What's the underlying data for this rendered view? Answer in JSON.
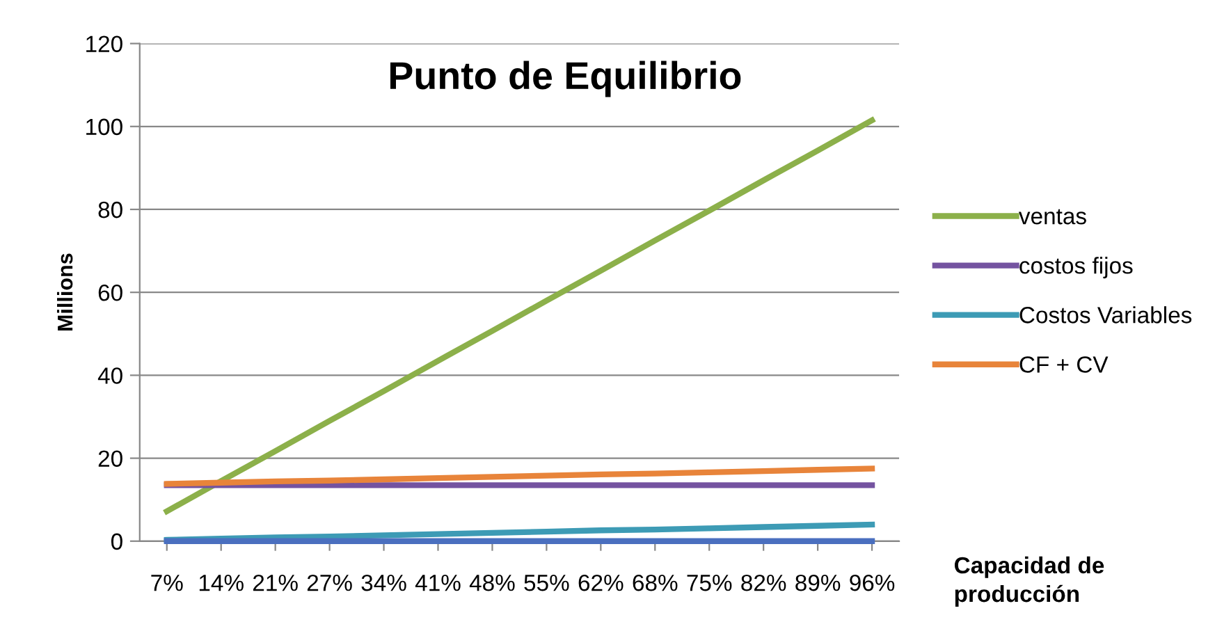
{
  "chart_data": {
    "type": "line",
    "title": "Punto de Equilibrio",
    "ylabel": "Millions",
    "xlabel": "Capacidad de\nproducción",
    "categories": [
      "7%",
      "14%",
      "21%",
      "27%",
      "34%",
      "41%",
      "48%",
      "55%",
      "62%",
      "68%",
      "75%",
      "82%",
      "89%",
      "96%"
    ],
    "series": [
      {
        "name": "ventas",
        "color": "#8cb04a",
        "values": [
          7.2,
          14.5,
          21.7,
          29.0,
          36.2,
          43.5,
          50.7,
          58.0,
          65.2,
          72.5,
          79.7,
          87.0,
          94.2,
          101.5
        ]
      },
      {
        "name": "costos fijos",
        "color": "#7453a0",
        "values": [
          13.5,
          13.5,
          13.5,
          13.5,
          13.5,
          13.5,
          13.5,
          13.5,
          13.5,
          13.5,
          13.5,
          13.5,
          13.5,
          13.5
        ]
      },
      {
        "name": "Costos Variables",
        "color": "#3d9bb5",
        "values": [
          0.3,
          0.6,
          0.9,
          1.1,
          1.4,
          1.7,
          2.0,
          2.3,
          2.6,
          2.8,
          3.1,
          3.4,
          3.7,
          4.0
        ]
      },
      {
        "name": "CF + CV",
        "color": "#e8843a",
        "values": [
          13.8,
          14.1,
          14.4,
          14.6,
          14.9,
          15.2,
          15.5,
          15.8,
          16.1,
          16.3,
          16.6,
          16.9,
          17.2,
          17.5
        ]
      },
      {
        "color": "#4a6fbf",
        "values": [
          0,
          0,
          0,
          0,
          0,
          0,
          0,
          0,
          0,
          0,
          0,
          0,
          0,
          0
        ]
      }
    ],
    "ylim": [
      0,
      120
    ],
    "yticks": [
      0,
      20,
      40,
      60,
      80,
      100,
      120
    ],
    "grid": "y",
    "legend": "right",
    "marker": "none",
    "line_style": "solid"
  }
}
